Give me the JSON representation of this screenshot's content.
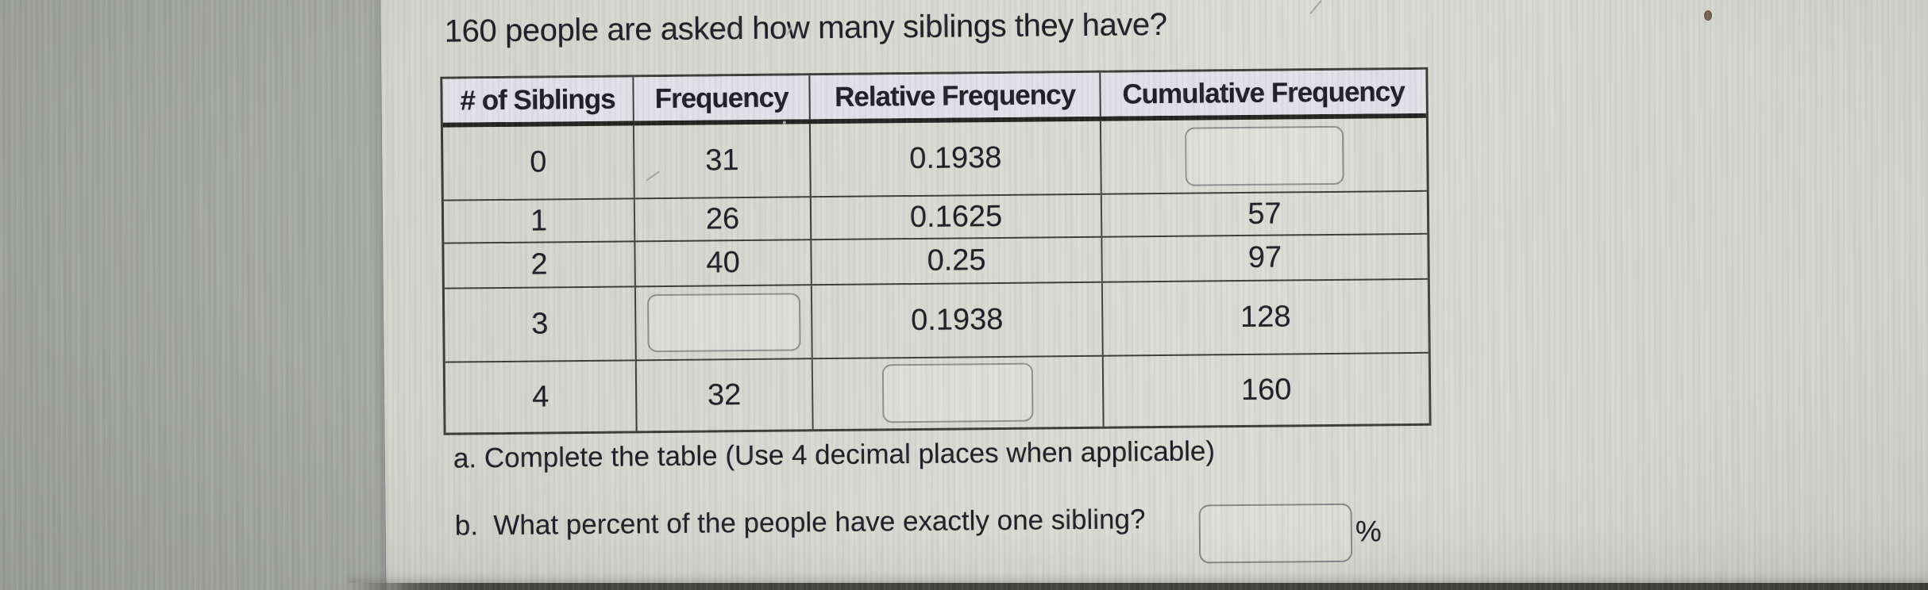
{
  "worksheet": {
    "title": "160 people are asked how many siblings they have?",
    "table": {
      "headers": [
        "# of Siblings",
        "Frequency",
        "Relative Frequency",
        "Cumulative Frequency"
      ],
      "rows": [
        {
          "siblings": "0",
          "frequency": "31",
          "relative_frequency": "0.1938",
          "cumulative_frequency": ""
        },
        {
          "siblings": "1",
          "frequency": "26",
          "relative_frequency": "0.1625",
          "cumulative_frequency": "57"
        },
        {
          "siblings": "2",
          "frequency": "40",
          "relative_frequency": "0.25",
          "cumulative_frequency": "97"
        },
        {
          "siblings": "3",
          "frequency": "",
          "relative_frequency": "0.1938",
          "cumulative_frequency": "128"
        },
        {
          "siblings": "4",
          "frequency": "32",
          "relative_frequency": "",
          "cumulative_frequency": "160"
        }
      ]
    },
    "questions": {
      "a_label": "a. Complete the table (Use 4 decimal places when applicable)",
      "b_label": "b.  What percent of the people have exactly one sibling?",
      "b_unit": "%"
    },
    "colors": {
      "paper": "#d6d8d0",
      "background": "#a9aba8",
      "ink": "#201d26",
      "table_border": "#3c3c39",
      "header_fill": "#e1e1e7",
      "input_border": "#8f9191",
      "bottom_bar": "#45463f"
    }
  }
}
